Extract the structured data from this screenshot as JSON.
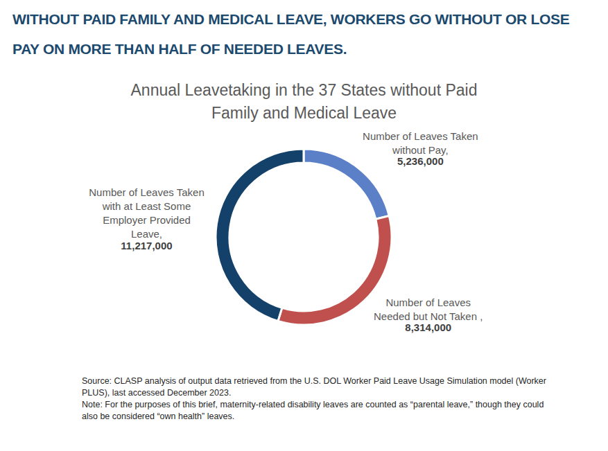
{
  "headline": "WITHOUT PAID FAMILY AND MEDICAL LEAVE, WORKERS GO WITHOUT OR LOSE PAY ON MORE THAN HALF OF NEEDED LEAVES.",
  "chart_data": {
    "type": "donut",
    "title": "Annual Leavetaking in the 37 States without Paid Family and Medical Leave",
    "categories": [
      "Number of Leaves Taken without Pay,",
      "Number of Leaves Needed but Not Taken ,",
      "Number of Leaves Taken with at Least Some Employer Provided Leave,"
    ],
    "values": [
      5236000,
      8314000,
      11217000
    ],
    "value_labels": [
      "5,236,000",
      "8,314,000",
      "11,217,000"
    ],
    "colors": [
      "#5b80c8",
      "#c0504d",
      "#14416a"
    ],
    "data_labels": true,
    "annotations": [
      "Source: CLASP analysis of output data retrieved from the U.S. DOL Worker Paid Leave Usage Simulation model (Worker PLUS), last accessed December 2023.",
      "Note: For the purposes of this brief, maternity-related disability leaves are counted as “parental leave,” though they could also be considered “own health” leaves."
    ]
  }
}
